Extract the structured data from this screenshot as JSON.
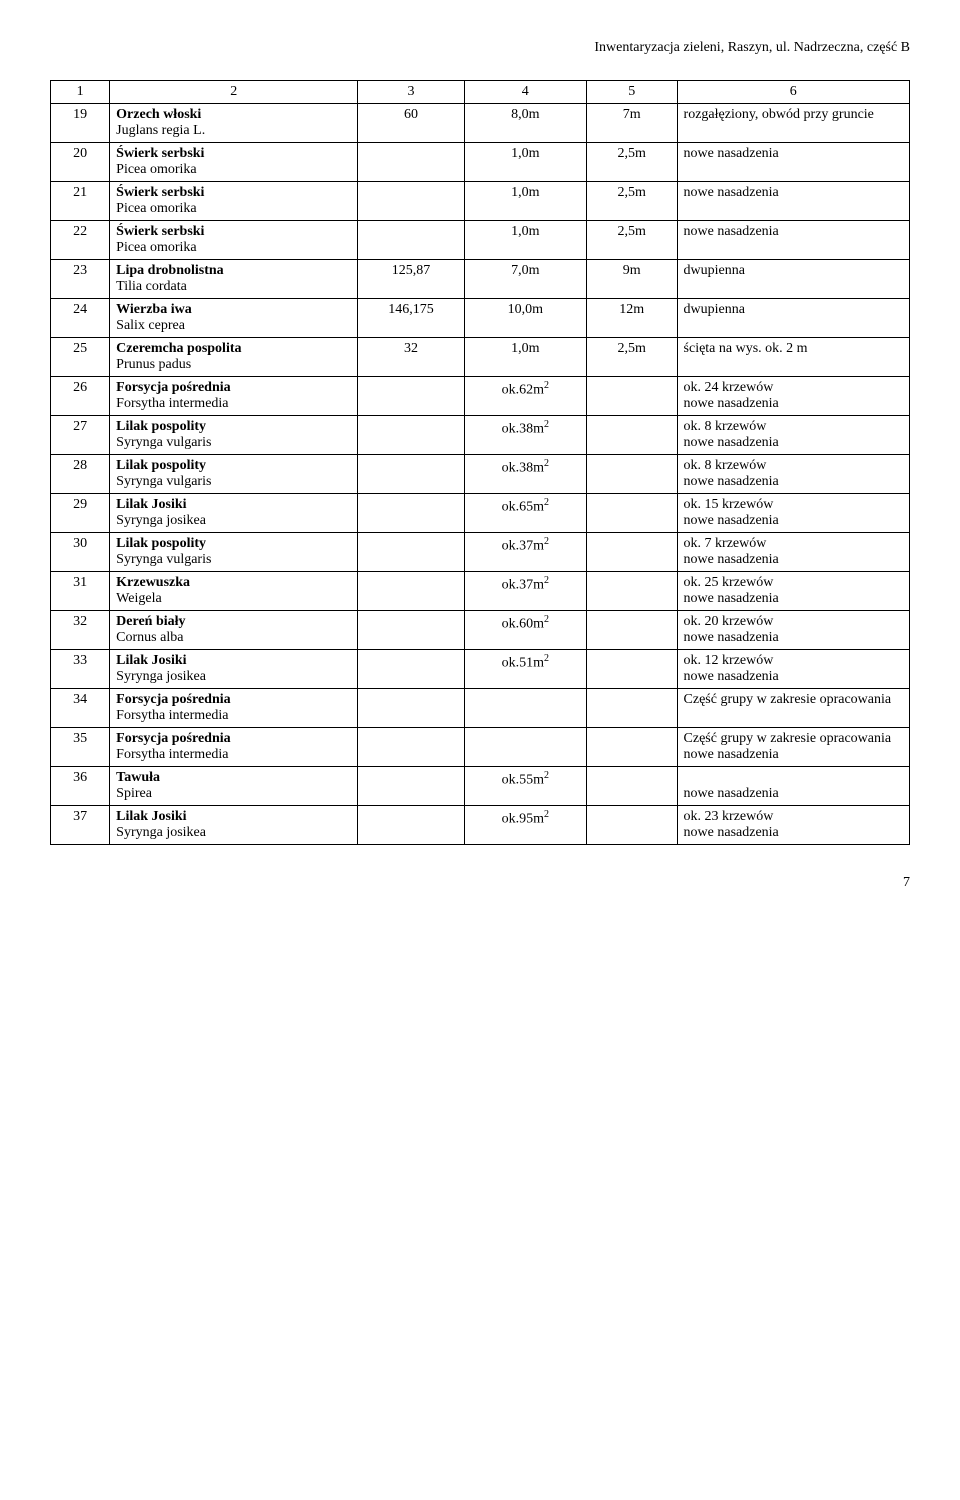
{
  "doc_header": "Inwentaryzacja zieleni, Raszyn, ul. Nadrzeczna, część B",
  "page_number": "7",
  "columns": [
    "1",
    "2",
    "3",
    "4",
    "5",
    "6"
  ],
  "rows": [
    {
      "n": "19",
      "bold": "Orzech włoski",
      "latin": "Juglans regia L.",
      "c3": "60",
      "c4": "8,0m",
      "c5": "7m",
      "c6": "rozgałęziony, obwód przy gruncie"
    },
    {
      "n": "20",
      "bold": "Świerk serbski",
      "latin": "Picea omorika",
      "c3": "",
      "c4": "1,0m",
      "c5": "2,5m",
      "c6": "nowe nasadzenia"
    },
    {
      "n": "21",
      "bold": "Świerk serbski",
      "latin": "Picea omorika",
      "c3": "",
      "c4": "1,0m",
      "c5": "2,5m",
      "c6": "nowe nasadzenia"
    },
    {
      "n": "22",
      "bold": "Świerk serbski",
      "latin": "Picea omorika",
      "c3": "",
      "c4": "1,0m",
      "c5": "2,5m",
      "c6": "nowe nasadzenia"
    },
    {
      "n": "23",
      "bold": "Lipa drobnolistna",
      "latin": "Tilia cordata",
      "c3": "125,87",
      "c4": "7,0m",
      "c5": "9m",
      "c6": "dwupienna"
    },
    {
      "n": "24",
      "bold": "Wierzba iwa",
      "latin": "Salix ceprea",
      "c3": "146,175",
      "c4": "10,0m",
      "c5": "12m",
      "c6": "dwupienna"
    },
    {
      "n": "25",
      "bold": "Czeremcha pospolita",
      "latin": "Prunus padus",
      "c3": "32",
      "c4": "1,0m",
      "c5": "2,5m",
      "c6": "ścięta na wys. ok. 2 m"
    },
    {
      "n": "26",
      "bold": "Forsycja pośrednia",
      "latin": "Forsytha intermedia",
      "c3": "",
      "c4": "ok.62m²",
      "c5": "",
      "c6": "ok. 24 krzewów\nnowe nasadzenia",
      "sq": true
    },
    {
      "n": "27",
      "bold": "Lilak pospolity",
      "latin": "Syrynga vulgaris",
      "c3": "",
      "c4": "ok.38m²",
      "c5": "",
      "c6": "ok. 8 krzewów\nnowe nasadzenia",
      "sq": true
    },
    {
      "n": "28",
      "bold": "Lilak pospolity",
      "latin": "Syrynga vulgaris",
      "c3": "",
      "c4": "ok.38m²",
      "c5": "",
      "c6": "ok. 8 krzewów\nnowe nasadzenia",
      "sq": true
    },
    {
      "n": "29",
      "bold": "Lilak Josiki",
      "latin": "Syrynga josikea",
      "c3": "",
      "c4": "ok.65m²",
      "c5": "",
      "c6": "ok. 15 krzewów\nnowe nasadzenia",
      "sq": true
    },
    {
      "n": "30",
      "bold": "Lilak pospolity",
      "latin": "Syrynga vulgaris",
      "c3": "",
      "c4": "ok.37m²",
      "c5": "",
      "c6": "ok. 7 krzewów\nnowe nasadzenia",
      "sq": true
    },
    {
      "n": "31",
      "bold": "Krzewuszka",
      "latin": "Weigela",
      "c3": "",
      "c4": "ok.37m²",
      "c5": "",
      "c6": "ok. 25 krzewów\nnowe nasadzenia",
      "sq": true
    },
    {
      "n": "32",
      "bold": "Dereń biały",
      "latin": "Cornus alba",
      "c3": "",
      "c4": "ok.60m²",
      "c5": "",
      "c6": "ok. 20 krzewów\nnowe nasadzenia",
      "sq": true
    },
    {
      "n": "33",
      "bold": "Lilak Josiki",
      "latin": "Syrynga josikea",
      "c3": "",
      "c4": "ok.51m²",
      "c5": "",
      "c6": "ok. 12 krzewów\nnowe nasadzenia",
      "sq": true
    },
    {
      "n": "34",
      "bold": "Forsycja pośrednia",
      "latin": "Forsytha intermedia",
      "c3": "",
      "c4": "",
      "c5": "",
      "c6": "Część grupy w zakresie opracowania"
    },
    {
      "n": "35",
      "bold": "Forsycja pośrednia",
      "latin": "Forsytha intermedia",
      "c3": "",
      "c4": "",
      "c5": "",
      "c6": "Część grupy w zakresie opracowania\nnowe nasadzenia"
    },
    {
      "n": "36",
      "bold": "Tawuła",
      "latin": "Spirea",
      "c3": "",
      "c4": "ok.55m²",
      "c5": "",
      "c6": "\nnowe nasadzenia",
      "sq": true
    },
    {
      "n": "37",
      "bold": "Lilak Josiki",
      "latin": "Syrynga josikea",
      "c3": "",
      "c4": "ok.95m²",
      "c5": "",
      "c6": "ok. 23 krzewów\nnowe nasadzenia",
      "sq": true
    }
  ]
}
